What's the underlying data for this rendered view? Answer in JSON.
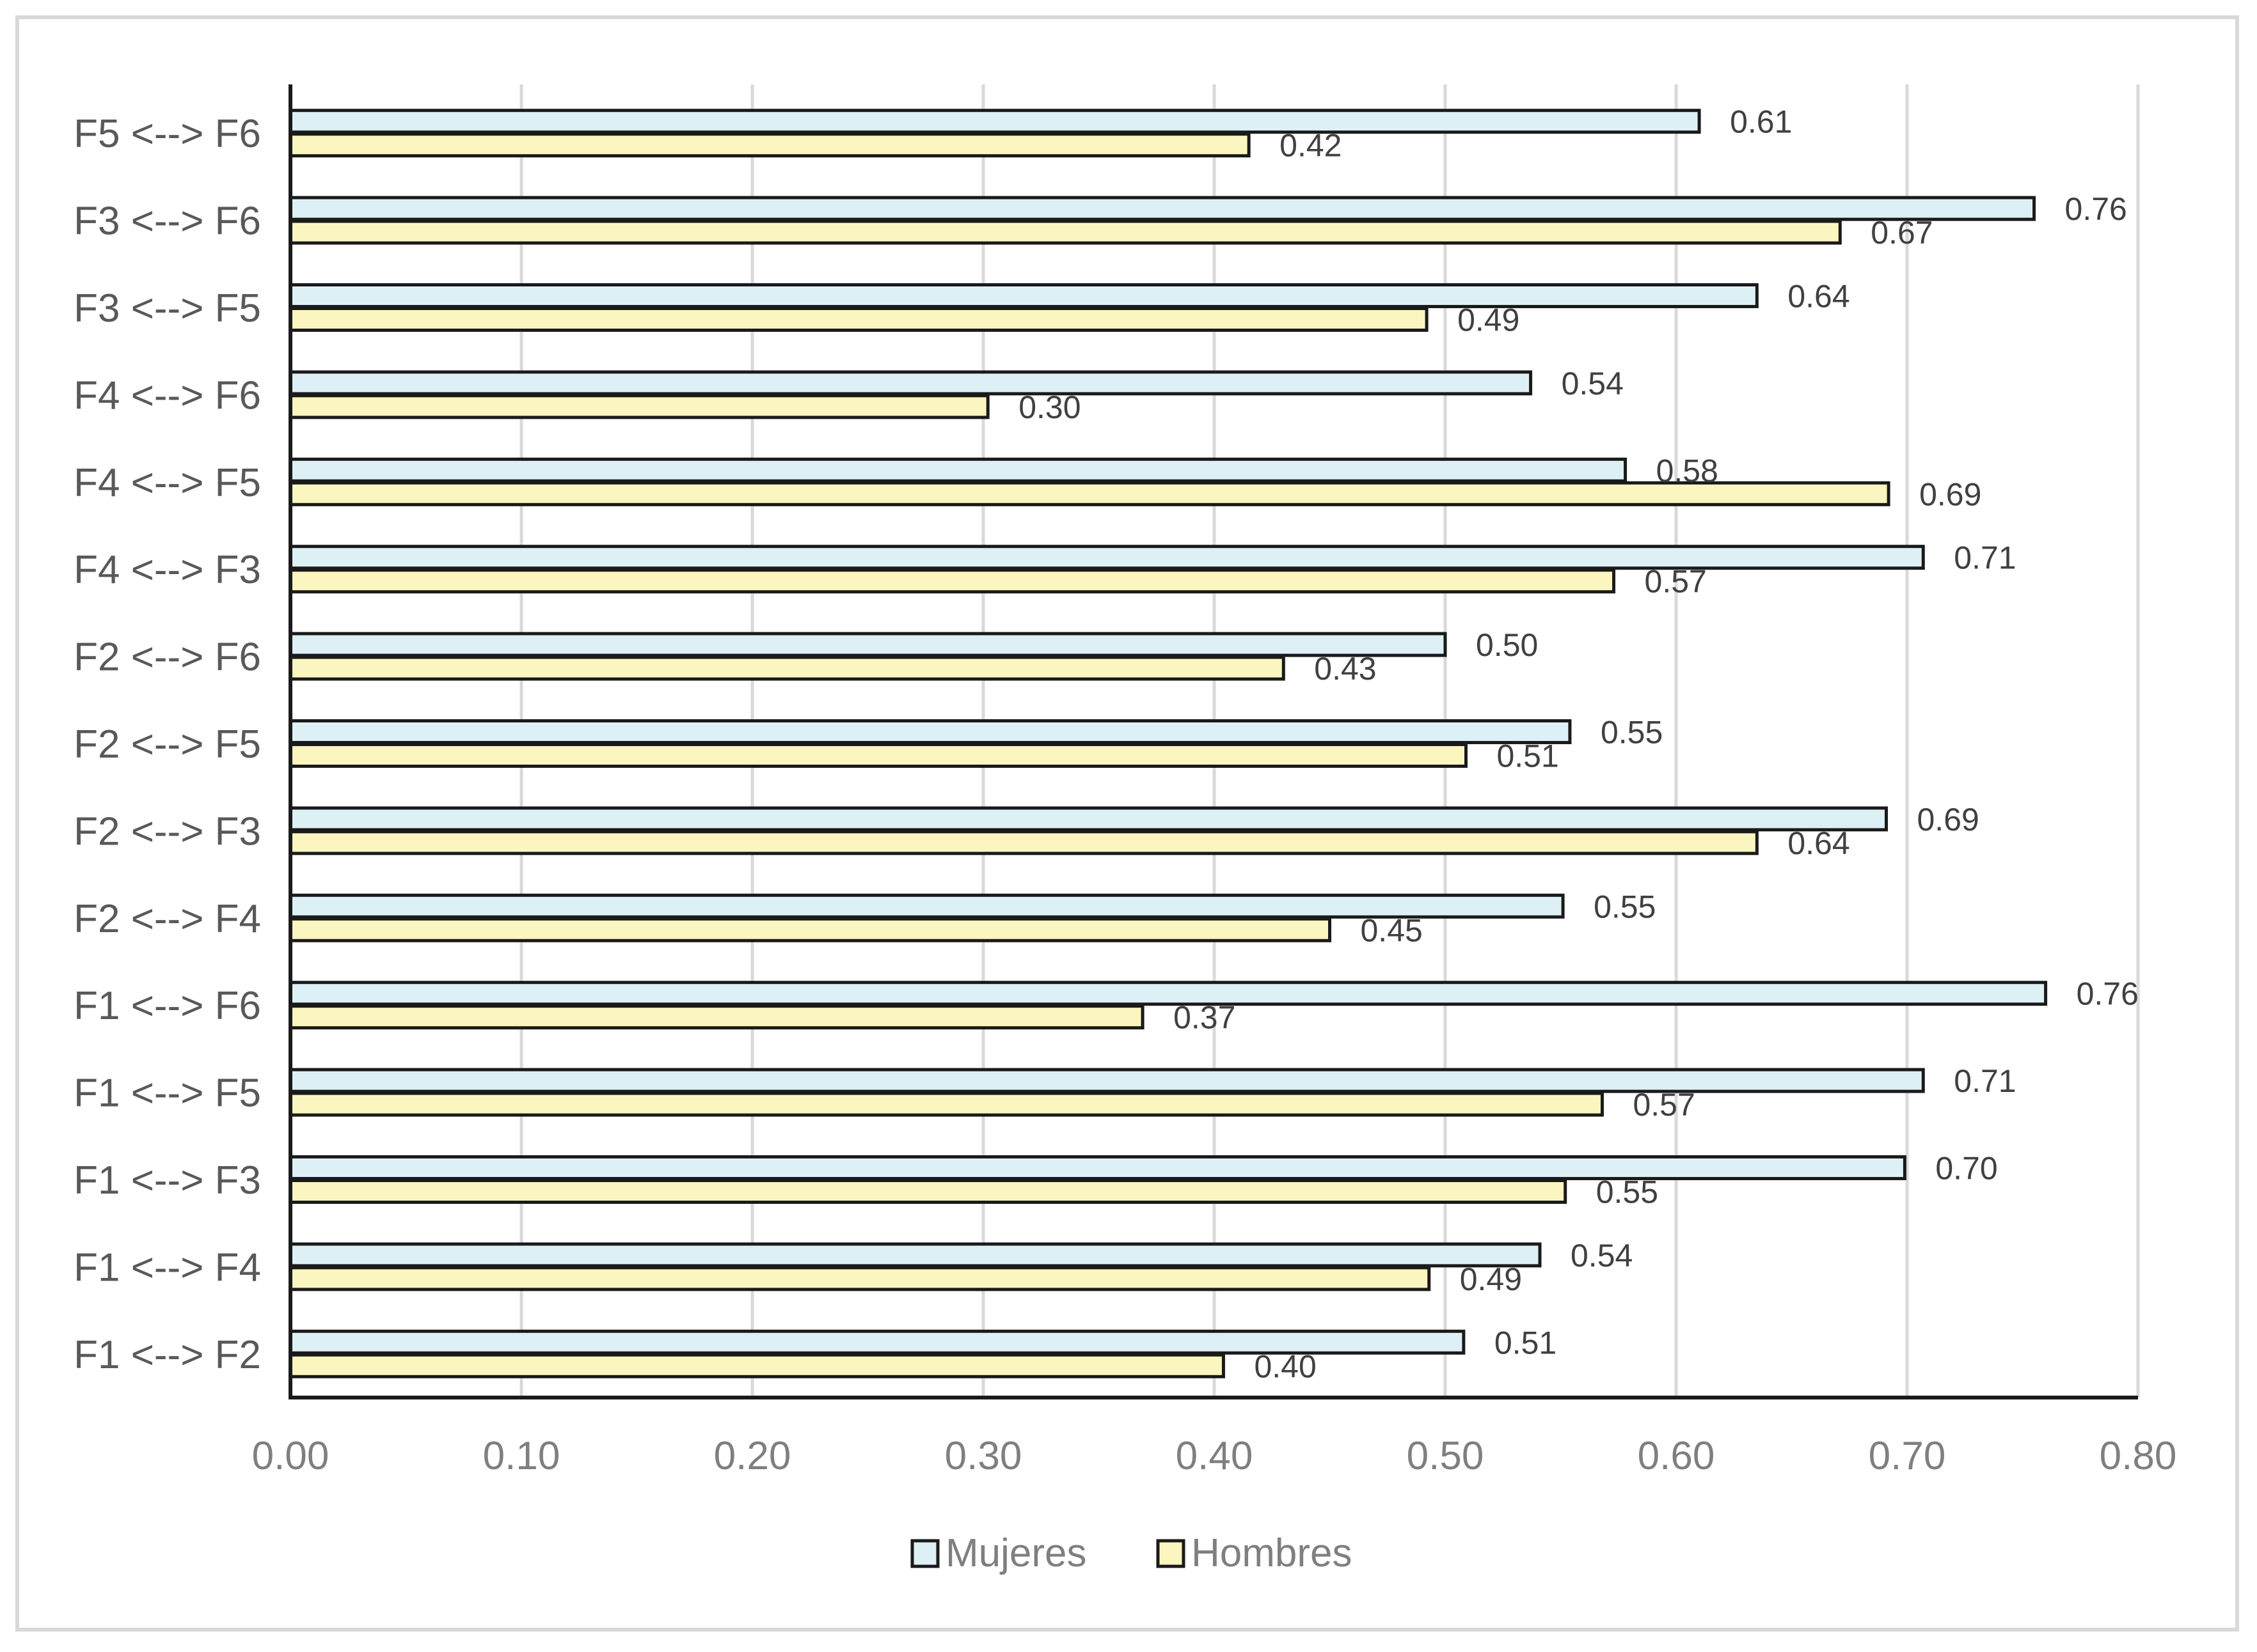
{
  "chart_data": {
    "type": "bar",
    "orientation": "horizontal",
    "title": "",
    "xlabel": "",
    "ylabel": "",
    "xlim": [
      0,
      0.8
    ],
    "xticks": [
      0.0,
      0.1,
      0.2,
      0.3,
      0.4,
      0.5,
      0.6,
      0.7,
      0.8
    ],
    "xtick_labels": [
      "0.00",
      "0.10",
      "0.20",
      "0.30",
      "0.40",
      "0.50",
      "0.60",
      "0.70",
      "0.80"
    ],
    "grid": true,
    "legend_position": "bottom",
    "categories": [
      "F5 <--> F6",
      "F3 <--> F6",
      "F3 <--> F5",
      "F4 <--> F6",
      "F4 <--> F5",
      "F4 <--> F3",
      "F2 <--> F6",
      "F2 <--> F5",
      "F2 <--> F3",
      "F2 <--> F4",
      "F1 <--> F6",
      "F1 <--> F5",
      "F1 <--> F3",
      "F1 <--> F4",
      "F1 <--> F2"
    ],
    "series": [
      {
        "name": "Mujeres",
        "color": "#ddf0f5",
        "values": [
          0.61,
          0.755,
          0.635,
          0.537,
          0.578,
          0.707,
          0.5,
          0.554,
          0.691,
          0.551,
          0.76,
          0.707,
          0.699,
          0.541,
          0.508
        ],
        "labels": [
          "0.61",
          "0.76",
          "0.64",
          "0.54",
          "0.58",
          "0.71",
          "0.50",
          "0.55",
          "0.69",
          "0.55",
          "0.76",
          "0.71",
          "0.70",
          "0.54",
          "0.51"
        ]
      },
      {
        "name": "Hombres",
        "color": "#fbf6bf",
        "values": [
          0.415,
          0.671,
          0.492,
          0.302,
          0.692,
          0.573,
          0.43,
          0.509,
          0.635,
          0.45,
          0.369,
          0.568,
          0.552,
          0.493,
          0.404
        ],
        "labels": [
          "0.42",
          "0.67",
          "0.49",
          "0.30",
          "0.69",
          "0.57",
          "0.43",
          "0.51",
          "0.64",
          "0.45",
          "0.37",
          "0.57",
          "0.55",
          "0.49",
          "0.40"
        ]
      }
    ]
  }
}
